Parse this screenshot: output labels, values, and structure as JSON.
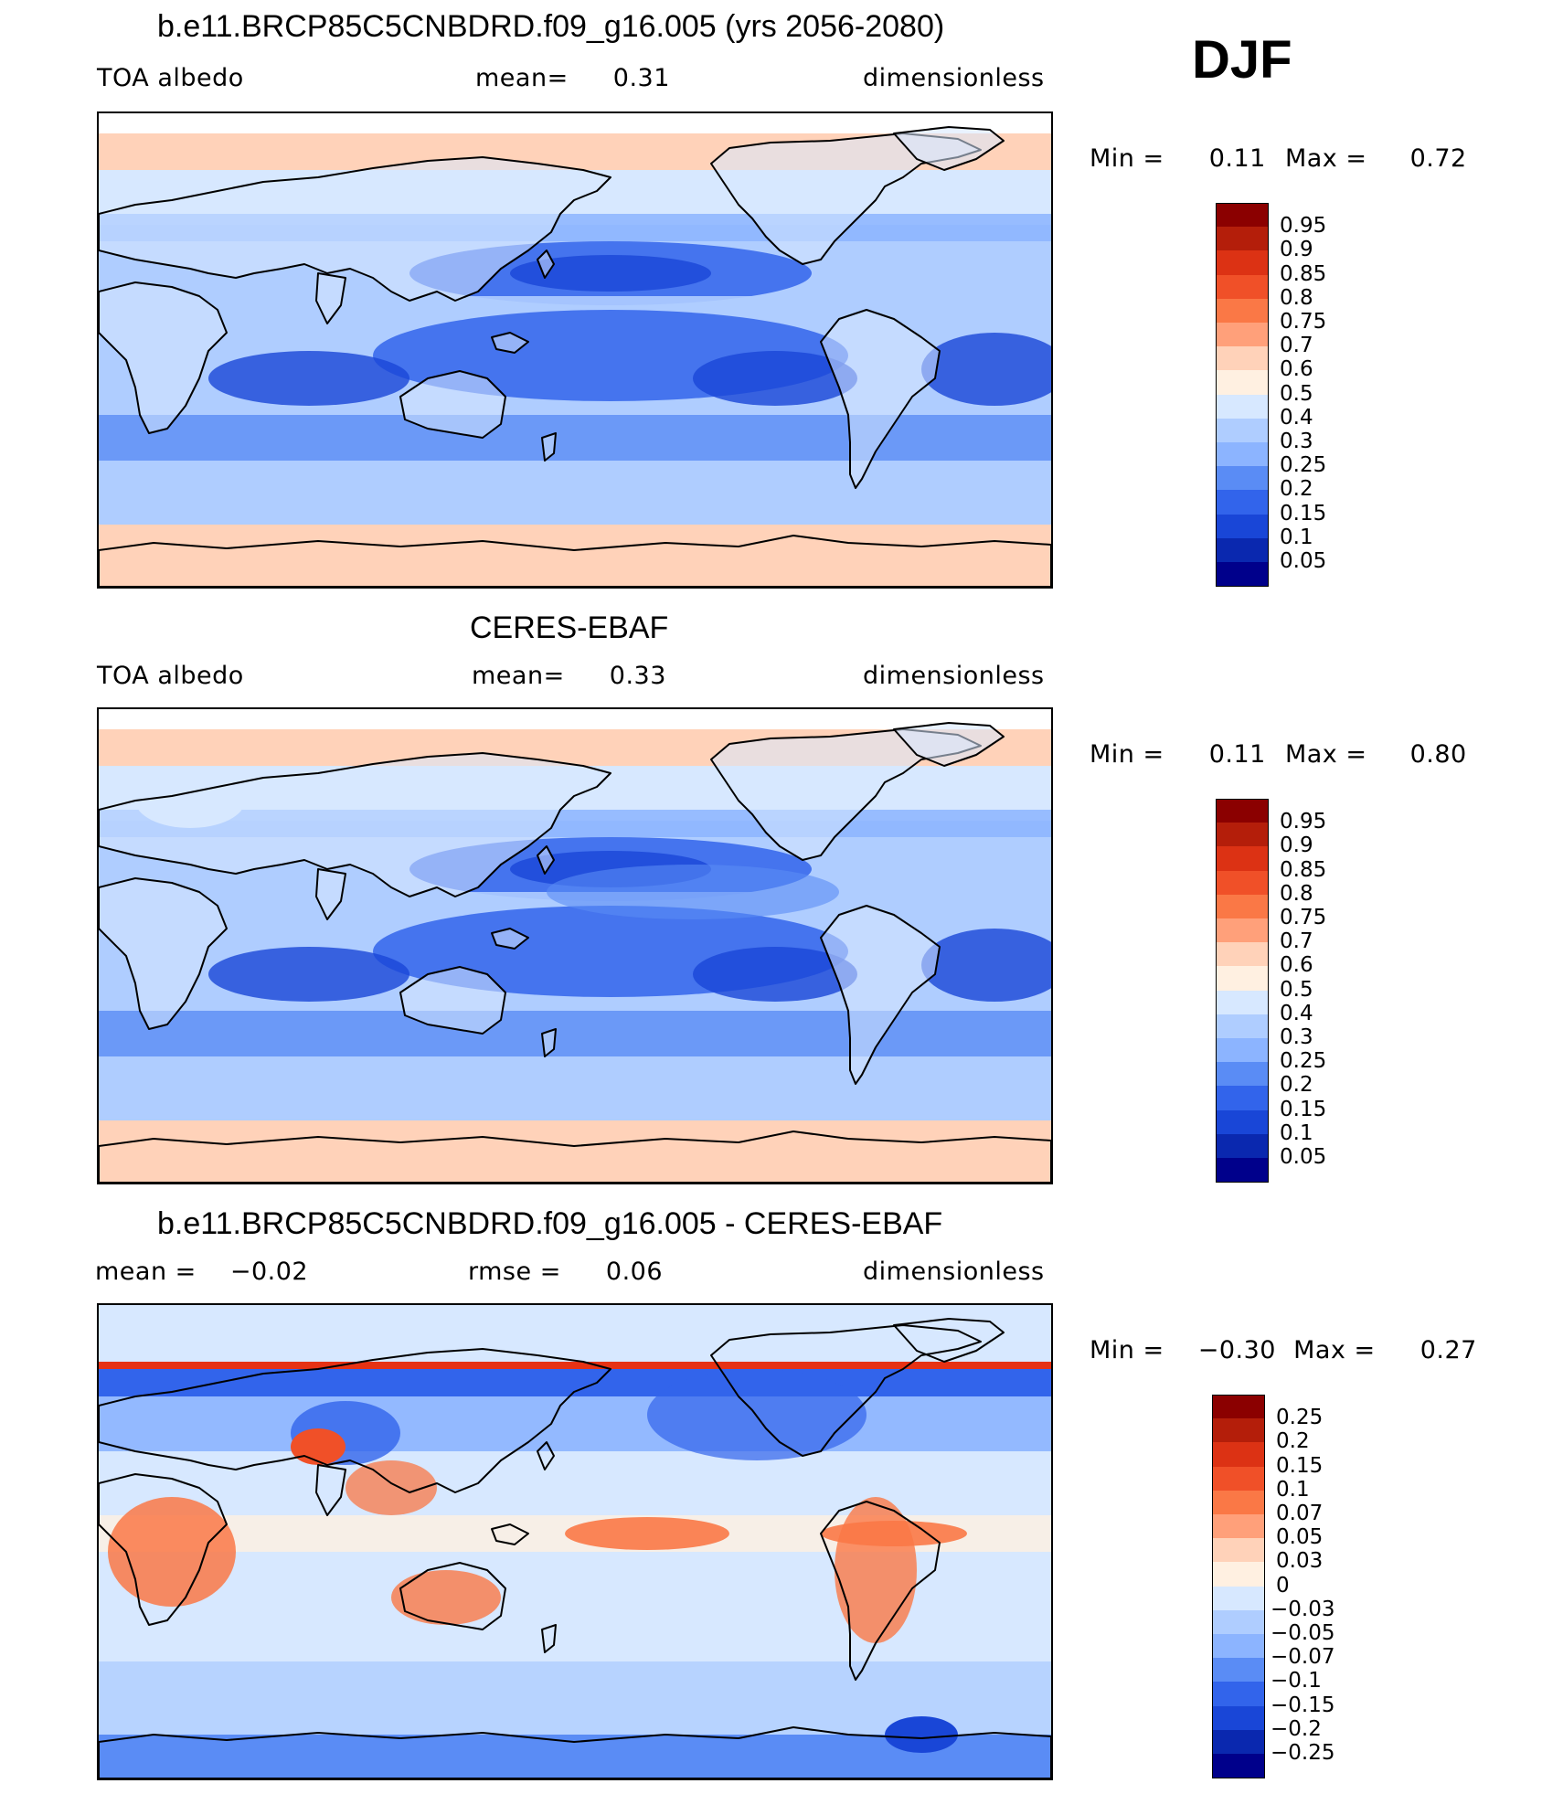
{
  "season": "DJF",
  "panels": [
    {
      "title": "b.e11.BRCP85C5CNBDRD.f09_g16.005 (yrs 2056-2080)",
      "left_label": "TOA albedo",
      "center_label": "mean=",
      "center_value": "0.31",
      "right_label": "dimensionless",
      "min_label": "Min =",
      "min_value": "0.11",
      "max_label": "Max =",
      "max_value": "0.72",
      "colorbar": [
        "0.95",
        "0.9",
        "0.85",
        "0.8",
        "0.75",
        "0.7",
        "0.6",
        "0.5",
        "0.4",
        "0.3",
        "0.25",
        "0.2",
        "0.15",
        "0.1",
        "0.05"
      ]
    },
    {
      "title": "CERES-EBAF",
      "left_label": "TOA albedo",
      "center_label": "mean=",
      "center_value": "0.33",
      "right_label": "dimensionless",
      "min_label": "Min =",
      "min_value": "0.11",
      "max_label": "Max =",
      "max_value": "0.80",
      "colorbar": [
        "0.95",
        "0.9",
        "0.85",
        "0.8",
        "0.75",
        "0.7",
        "0.6",
        "0.5",
        "0.4",
        "0.3",
        "0.25",
        "0.2",
        "0.15",
        "0.1",
        "0.05"
      ]
    },
    {
      "title": "b.e11.BRCP85C5CNBDRD.f09_g16.005 - CERES-EBAF",
      "left_label": "mean =",
      "left_value": "−0.02",
      "center_label": "rmse =",
      "center_value": "0.06",
      "right_label": "dimensionless",
      "min_label": "Min =",
      "min_value": "−0.30",
      "max_label": "Max =",
      "max_value": "0.27",
      "colorbar": [
        "0.25",
        "0.2",
        "0.15",
        "0.1",
        "0.07",
        "0.05",
        "0.03",
        "0",
        "−0.03",
        "−0.05",
        "−0.07",
        "−0.1",
        "−0.15",
        "−0.2",
        "−0.25"
      ]
    }
  ],
  "colors": {
    "scale": [
      "#00008b",
      "#0a1eb4",
      "#0d3ccd",
      "#1450e6",
      "#2864f0",
      "#4682f5",
      "#78a5fa",
      "#aac8ff",
      "#d2e4ff",
      "#fff0e1",
      "#ffd2b9",
      "#ffaa82",
      "#ff825a",
      "#ff5a2d",
      "#e62d14",
      "#b41e0a",
      "#780000"
    ],
    "land_outline": "#000000"
  }
}
